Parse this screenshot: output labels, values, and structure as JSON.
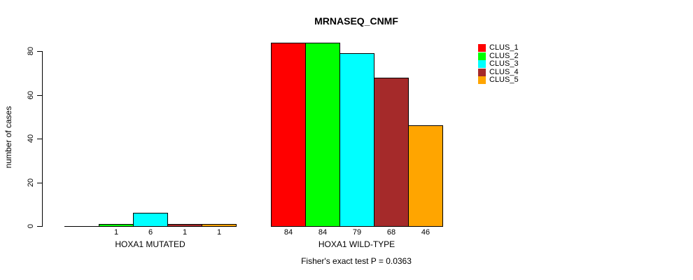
{
  "title": "MRNASEQ_CNMF",
  "caption": "Fisher's exact test P = 0.0363",
  "chart_data": {
    "type": "bar",
    "title": "MRNASEQ_CNMF",
    "ylabel": "number of cases",
    "xlabel": "",
    "ylim": [
      0,
      80
    ],
    "yticks": [
      0,
      20,
      40,
      60,
      80
    ],
    "grid": false,
    "legend_position": "right",
    "series": [
      {
        "name": "CLUS_1",
        "color": "#FF0000"
      },
      {
        "name": "CLUS_2",
        "color": "#00FF00"
      },
      {
        "name": "CLUS_3",
        "color": "#00FFFF"
      },
      {
        "name": "CLUS_4",
        "color": "#A52A2A"
      },
      {
        "name": "CLUS_5",
        "color": "#FFA500"
      }
    ],
    "groups": [
      {
        "label": "HOXA1 MUTATED",
        "values": [
          0,
          1,
          6,
          1,
          1
        ],
        "bar_labels": [
          "",
          "1",
          "6",
          "1",
          "1"
        ]
      },
      {
        "label": "HOXA1 WILD-TYPE",
        "values": [
          84,
          84,
          79,
          68,
          46
        ],
        "bar_labels": [
          "84",
          "84",
          "79",
          "68",
          "46"
        ]
      }
    ],
    "annotation": "Fisher's exact test P = 0.0363"
  }
}
